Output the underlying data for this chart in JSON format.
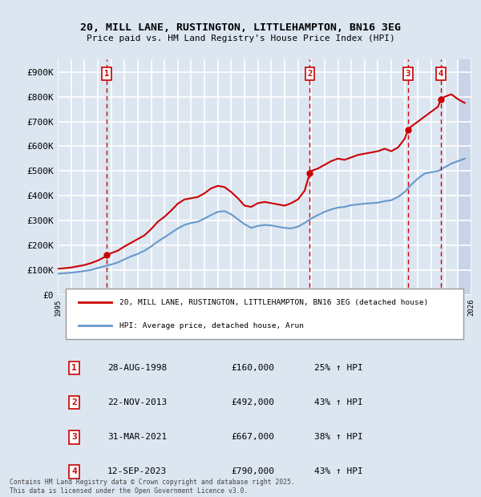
{
  "title": "20, MILL LANE, RUSTINGTON, LITTLEHAMPTON, BN16 3EG",
  "subtitle": "Price paid vs. HM Land Registry's House Price Index (HPI)",
  "bg_color": "#dce6f1",
  "plot_bg_color": "#dce6f1",
  "hatch_color": "#c8d5e8",
  "grid_color": "#ffffff",
  "ylabel": "",
  "ylim": [
    0,
    950000
  ],
  "yticks": [
    0,
    100000,
    200000,
    300000,
    400000,
    500000,
    600000,
    700000,
    800000,
    900000
  ],
  "ytick_labels": [
    "£0",
    "£100K",
    "£200K",
    "£300K",
    "£400K",
    "£500K",
    "£600K",
    "£700K",
    "£800K",
    "£900K"
  ],
  "xmin": 1995,
  "xmax": 2026,
  "sale_dates_num": [
    1998.66,
    2013.89,
    2021.25,
    2023.71
  ],
  "sale_prices": [
    160000,
    492000,
    667000,
    790000
  ],
  "sale_labels": [
    "1",
    "2",
    "3",
    "4"
  ],
  "red_line_color": "#cc0000",
  "blue_line_color": "#6699cc",
  "sale_marker_color": "#cc0000",
  "vline_color": "#cc0000",
  "legend_label_red": "20, MILL LANE, RUSTINGTON, LITTLEHAMPTON, BN16 3EG (detached house)",
  "legend_label_blue": "HPI: Average price, detached house, Arun",
  "table_entries": [
    {
      "num": "1",
      "date": "28-AUG-1998",
      "price": "£160,000",
      "hpi": "25% ↑ HPI"
    },
    {
      "num": "2",
      "date": "22-NOV-2013",
      "price": "£492,000",
      "hpi": "43% ↑ HPI"
    },
    {
      "num": "3",
      "date": "31-MAR-2021",
      "price": "£667,000",
      "hpi": "38% ↑ HPI"
    },
    {
      "num": "4",
      "date": "12-SEP-2023",
      "price": "£790,000",
      "hpi": "43% ↑ HPI"
    }
  ],
  "footer": "Contains HM Land Registry data © Crown copyright and database right 2025.\nThis data is licensed under the Open Government Licence v3.0.",
  "red_x": [
    1995.0,
    1995.5,
    1996.0,
    1996.5,
    1997.0,
    1997.5,
    1998.0,
    1998.5,
    1998.66,
    1999.0,
    1999.5,
    2000.0,
    2000.5,
    2001.0,
    2001.5,
    2002.0,
    2002.5,
    2003.0,
    2003.5,
    2004.0,
    2004.5,
    2005.0,
    2005.5,
    2006.0,
    2006.5,
    2007.0,
    2007.5,
    2008.0,
    2008.5,
    2009.0,
    2009.5,
    2010.0,
    2010.5,
    2011.0,
    2011.5,
    2012.0,
    2012.5,
    2013.0,
    2013.5,
    2013.89,
    2014.0,
    2014.5,
    2015.0,
    2015.5,
    2016.0,
    2016.5,
    2017.0,
    2017.5,
    2018.0,
    2018.5,
    2019.0,
    2019.5,
    2020.0,
    2020.5,
    2021.0,
    2021.25,
    2021.5,
    2022.0,
    2022.5,
    2023.0,
    2023.5,
    2023.71,
    2024.0,
    2024.5,
    2025.0,
    2025.5
  ],
  "red_y": [
    105000,
    107000,
    110000,
    115000,
    120000,
    128000,
    138000,
    152000,
    160000,
    168000,
    178000,
    195000,
    210000,
    225000,
    240000,
    265000,
    295000,
    315000,
    340000,
    368000,
    385000,
    390000,
    395000,
    410000,
    430000,
    440000,
    435000,
    415000,
    390000,
    360000,
    355000,
    370000,
    375000,
    370000,
    365000,
    360000,
    370000,
    385000,
    420000,
    492000,
    500000,
    510000,
    525000,
    540000,
    550000,
    545000,
    555000,
    565000,
    570000,
    575000,
    580000,
    590000,
    580000,
    595000,
    630000,
    667000,
    680000,
    700000,
    720000,
    740000,
    760000,
    790000,
    800000,
    810000,
    790000,
    775000
  ],
  "blue_x": [
    1995.0,
    1995.5,
    1996.0,
    1996.5,
    1997.0,
    1997.5,
    1998.0,
    1998.5,
    1999.0,
    1999.5,
    2000.0,
    2000.5,
    2001.0,
    2001.5,
    2002.0,
    2002.5,
    2003.0,
    2003.5,
    2004.0,
    2004.5,
    2005.0,
    2005.5,
    2006.0,
    2006.5,
    2007.0,
    2007.5,
    2008.0,
    2008.5,
    2009.0,
    2009.5,
    2010.0,
    2010.5,
    2011.0,
    2011.5,
    2012.0,
    2012.5,
    2013.0,
    2013.5,
    2014.0,
    2014.5,
    2015.0,
    2015.5,
    2016.0,
    2016.5,
    2017.0,
    2017.5,
    2018.0,
    2018.5,
    2019.0,
    2019.5,
    2020.0,
    2020.5,
    2021.0,
    2021.5,
    2022.0,
    2022.5,
    2023.0,
    2023.5,
    2024.0,
    2024.5,
    2025.0,
    2025.5
  ],
  "blue_y": [
    85000,
    87000,
    89000,
    92000,
    96000,
    100000,
    108000,
    115000,
    122000,
    130000,
    143000,
    155000,
    165000,
    178000,
    195000,
    215000,
    232000,
    250000,
    268000,
    282000,
    290000,
    295000,
    308000,
    322000,
    335000,
    338000,
    325000,
    305000,
    285000,
    270000,
    278000,
    282000,
    280000,
    275000,
    270000,
    268000,
    275000,
    290000,
    308000,
    322000,
    335000,
    345000,
    352000,
    355000,
    362000,
    365000,
    368000,
    370000,
    372000,
    378000,
    382000,
    395000,
    415000,
    445000,
    470000,
    490000,
    495000,
    500000,
    515000,
    530000,
    540000,
    550000
  ]
}
